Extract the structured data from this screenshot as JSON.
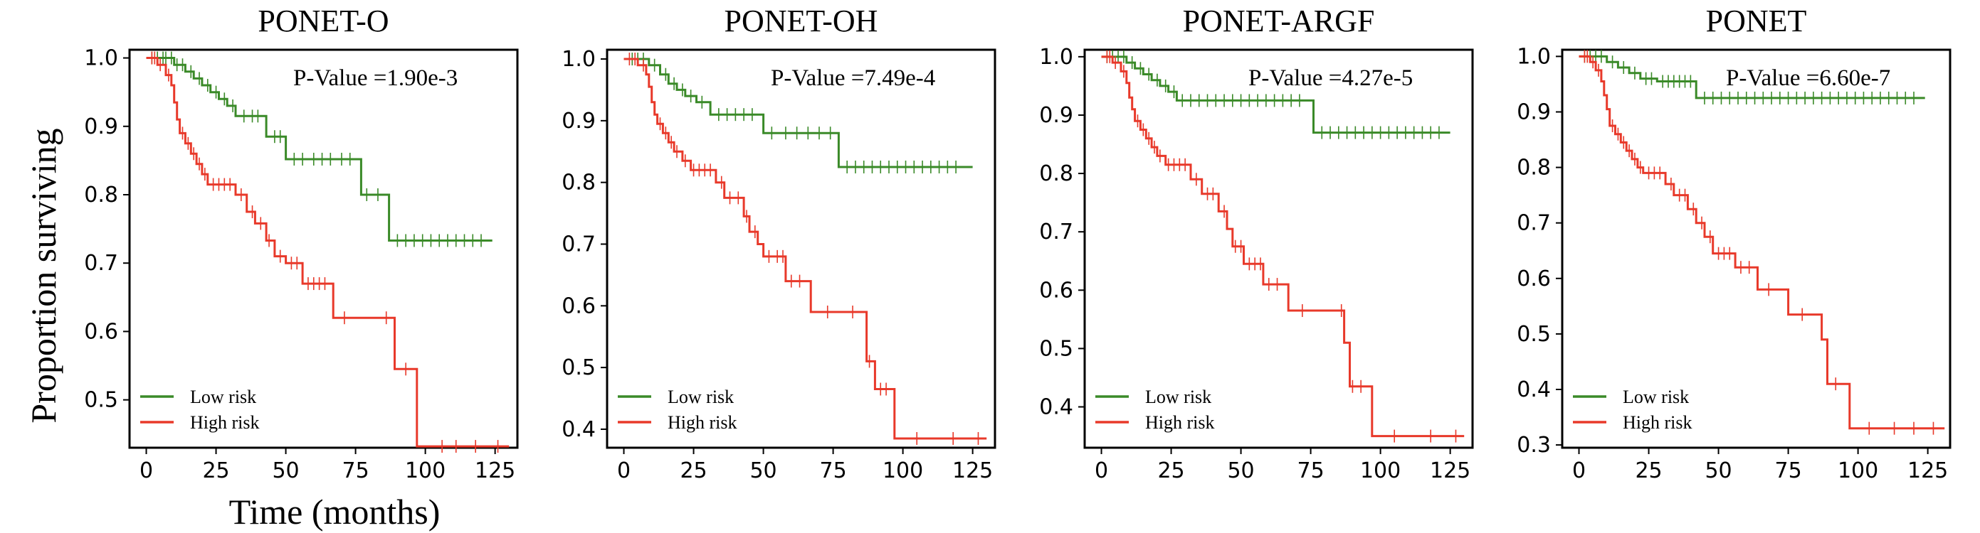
{
  "figure": {
    "ylabel": "Proportion surviving",
    "xlabel": "Time (months)"
  },
  "colors": {
    "low": "#3a8a28",
    "high": "#e8392a"
  },
  "chart_data": [
    {
      "type": "line",
      "title": "PONET-O",
      "annotation": "P-Value =1.90e-3",
      "xticks": [
        0,
        25,
        50,
        75,
        100,
        125
      ],
      "yticks": [
        0.5,
        0.6,
        0.7,
        0.8,
        0.9,
        1.0
      ],
      "ytick_labels": [
        "0.5",
        "0.6",
        "0.7",
        "0.8",
        "0.9",
        "1.0"
      ],
      "xlim": [
        -6,
        133
      ],
      "ylim": [
        0.43,
        1.012
      ],
      "legend": [
        "Low risk",
        "High risk"
      ],
      "series": [
        {
          "name": "Low risk",
          "color": "#3a8a28",
          "steps": [
            [
              0,
              1.0
            ],
            [
              10,
              0.99
            ],
            [
              14,
              0.98
            ],
            [
              17,
              0.97
            ],
            [
              20,
              0.96
            ],
            [
              23,
              0.95
            ],
            [
              26,
              0.94
            ],
            [
              29,
              0.93
            ],
            [
              32,
              0.915
            ],
            [
              43,
              0.885
            ],
            [
              50,
              0.852
            ],
            [
              77,
              0.8
            ],
            [
              87,
              0.733
            ],
            [
              124,
              0.733
            ]
          ],
          "censors": [
            2,
            4,
            6,
            7,
            9,
            11,
            13,
            16,
            19,
            22,
            25,
            28,
            31,
            35,
            38,
            40,
            46,
            48,
            53,
            56,
            60,
            63,
            66,
            70,
            73,
            79,
            83,
            90,
            93,
            96,
            99,
            102,
            105,
            108,
            111,
            114,
            117,
            120
          ]
        },
        {
          "name": "High risk",
          "color": "#e8392a",
          "steps": [
            [
              0,
              1.0
            ],
            [
              4,
              0.99
            ],
            [
              7,
              0.975
            ],
            [
              9,
              0.96
            ],
            [
              10,
              0.935
            ],
            [
              11,
              0.91
            ],
            [
              12,
              0.89
            ],
            [
              14,
              0.875
            ],
            [
              16,
              0.86
            ],
            [
              18,
              0.845
            ],
            [
              20,
              0.83
            ],
            [
              22,
              0.815
            ],
            [
              32,
              0.8
            ],
            [
              36,
              0.775
            ],
            [
              39,
              0.758
            ],
            [
              43,
              0.733
            ],
            [
              46,
              0.71
            ],
            [
              50,
              0.7
            ],
            [
              56,
              0.67
            ],
            [
              67,
              0.62
            ],
            [
              89,
              0.545
            ],
            [
              97,
              0.432
            ],
            [
              130,
              0.432
            ]
          ],
          "censors": [
            2,
            3,
            5,
            8,
            13,
            15,
            17,
            19,
            21,
            24,
            26,
            28,
            30,
            34,
            38,
            41,
            44,
            48,
            52,
            54,
            58,
            60,
            62,
            64,
            71,
            86,
            93,
            106,
            111,
            118,
            126
          ]
        }
      ]
    },
    {
      "type": "line",
      "title": "PONET-OH",
      "annotation": "P-Value =7.49e-4",
      "xticks": [
        0,
        25,
        50,
        75,
        100,
        125
      ],
      "yticks": [
        0.4,
        0.5,
        0.6,
        0.7,
        0.8,
        0.9,
        1.0
      ],
      "ytick_labels": [
        "0.4",
        "0.5",
        "0.6",
        "0.7",
        "0.8",
        "0.9",
        "1.0"
      ],
      "xlim": [
        -6,
        133
      ],
      "ylim": [
        0.37,
        1.015
      ],
      "legend": [
        "Low risk",
        "High risk"
      ],
      "series": [
        {
          "name": "Low risk",
          "color": "#3a8a28",
          "steps": [
            [
              0,
              1.0
            ],
            [
              9,
              0.99
            ],
            [
              13,
              0.975
            ],
            [
              16,
              0.96
            ],
            [
              19,
              0.95
            ],
            [
              22,
              0.94
            ],
            [
              26,
              0.93
            ],
            [
              31,
              0.91
            ],
            [
              50,
              0.88
            ],
            [
              77,
              0.825
            ],
            [
              125,
              0.825
            ]
          ],
          "censors": [
            3,
            5,
            7,
            11,
            15,
            18,
            21,
            24,
            28,
            34,
            37,
            40,
            43,
            46,
            53,
            58,
            62,
            66,
            70,
            74,
            80,
            83,
            86,
            89,
            92,
            95,
            98,
            101,
            104,
            107,
            110,
            113,
            116,
            119
          ]
        },
        {
          "name": "High risk",
          "color": "#e8392a",
          "steps": [
            [
              0,
              1.0
            ],
            [
              5,
              0.99
            ],
            [
              8,
              0.975
            ],
            [
              9,
              0.955
            ],
            [
              10,
              0.93
            ],
            [
              11,
              0.91
            ],
            [
              12,
              0.895
            ],
            [
              14,
              0.88
            ],
            [
              16,
              0.865
            ],
            [
              18,
              0.85
            ],
            [
              21,
              0.835
            ],
            [
              24,
              0.82
            ],
            [
              33,
              0.8
            ],
            [
              36,
              0.775
            ],
            [
              43,
              0.745
            ],
            [
              45,
              0.72
            ],
            [
              48,
              0.7
            ],
            [
              50,
              0.68
            ],
            [
              58,
              0.64
            ],
            [
              67,
              0.59
            ],
            [
              87,
              0.51
            ],
            [
              90,
              0.465
            ],
            [
              97,
              0.385
            ],
            [
              130,
              0.385
            ]
          ],
          "censors": [
            2,
            4,
            7,
            13,
            15,
            17,
            19,
            22,
            25,
            27,
            29,
            31,
            35,
            38,
            41,
            44,
            47,
            52,
            55,
            57,
            60,
            63,
            73,
            82,
            88,
            92,
            94,
            105,
            118,
            127
          ]
        }
      ]
    },
    {
      "type": "line",
      "title": "PONET-ARGF",
      "annotation": "P-Value =4.27e-5",
      "xticks": [
        0,
        25,
        50,
        75,
        100,
        125
      ],
      "yticks": [
        0.4,
        0.5,
        0.6,
        0.7,
        0.8,
        0.9,
        1.0
      ],
      "ytick_labels": [
        "0.4",
        "0.5",
        "0.6",
        "0.7",
        "0.8",
        "0.9",
        "1.0"
      ],
      "xlim": [
        -6,
        133
      ],
      "ylim": [
        0.33,
        1.012
      ],
      "legend": [
        "Low risk",
        "High risk"
      ],
      "series": [
        {
          "name": "Low risk",
          "color": "#3a8a28",
          "steps": [
            [
              0,
              1.0
            ],
            [
              9,
              0.99
            ],
            [
              12,
              0.98
            ],
            [
              15,
              0.97
            ],
            [
              18,
              0.96
            ],
            [
              21,
              0.95
            ],
            [
              24,
              0.94
            ],
            [
              27,
              0.925
            ],
            [
              76,
              0.87
            ],
            [
              125,
              0.87
            ]
          ],
          "censors": [
            2,
            4,
            6,
            8,
            11,
            14,
            17,
            20,
            23,
            26,
            29,
            32,
            35,
            38,
            41,
            44,
            47,
            50,
            53,
            56,
            59,
            62,
            65,
            68,
            71,
            79,
            82,
            85,
            88,
            91,
            94,
            97,
            100,
            103,
            106,
            109,
            112,
            115,
            118,
            121
          ]
        },
        {
          "name": "High risk",
          "color": "#e8392a",
          "steps": [
            [
              0,
              1.0
            ],
            [
              4,
              0.99
            ],
            [
              7,
              0.975
            ],
            [
              9,
              0.955
            ],
            [
              10,
              0.93
            ],
            [
              11,
              0.91
            ],
            [
              12,
              0.89
            ],
            [
              14,
              0.875
            ],
            [
              16,
              0.86
            ],
            [
              18,
              0.845
            ],
            [
              20,
              0.83
            ],
            [
              23,
              0.815
            ],
            [
              32,
              0.79
            ],
            [
              36,
              0.765
            ],
            [
              42,
              0.735
            ],
            [
              45,
              0.705
            ],
            [
              47,
              0.675
            ],
            [
              51,
              0.645
            ],
            [
              58,
              0.61
            ],
            [
              67,
              0.565
            ],
            [
              87,
              0.51
            ],
            [
              89,
              0.435
            ],
            [
              97,
              0.35
            ],
            [
              130,
              0.35
            ]
          ],
          "censors": [
            2,
            3,
            5,
            8,
            13,
            15,
            17,
            19,
            21,
            24,
            26,
            28,
            30,
            34,
            38,
            40,
            44,
            48,
            50,
            53,
            55,
            57,
            60,
            63,
            72,
            86,
            90,
            93,
            105,
            118,
            127
          ]
        }
      ]
    },
    {
      "type": "line",
      "title": "PONET",
      "annotation": "P-Value =6.60e-7",
      "xticks": [
        0,
        25,
        50,
        75,
        100,
        125
      ],
      "yticks": [
        0.3,
        0.4,
        0.5,
        0.6,
        0.7,
        0.8,
        0.9,
        1.0
      ],
      "ytick_labels": [
        "0.3",
        "0.4",
        "0.5",
        "0.6",
        "0.7",
        "0.8",
        "0.9",
        "1.0"
      ],
      "xlim": [
        -6,
        133
      ],
      "ylim": [
        0.295,
        1.012
      ],
      "legend": [
        "Low risk",
        "High risk"
      ],
      "series": [
        {
          "name": "Low risk",
          "color": "#3a8a28",
          "steps": [
            [
              0,
              1.0
            ],
            [
              10,
              0.99
            ],
            [
              14,
              0.98
            ],
            [
              18,
              0.97
            ],
            [
              22,
              0.96
            ],
            [
              28,
              0.955
            ],
            [
              42,
              0.925
            ],
            [
              124,
              0.925
            ]
          ],
          "censors": [
            2,
            4,
            6,
            8,
            12,
            16,
            20,
            24,
            26,
            30,
            32,
            34,
            36,
            38,
            40,
            45,
            48,
            51,
            54,
            57,
            60,
            63,
            66,
            69,
            72,
            75,
            78,
            81,
            84,
            87,
            90,
            93,
            96,
            99,
            102,
            105,
            108,
            111,
            114,
            117,
            120
          ]
        },
        {
          "name": "High risk",
          "color": "#e8392a",
          "steps": [
            [
              0,
              1.0
            ],
            [
              4,
              0.99
            ],
            [
              6,
              0.975
            ],
            [
              8,
              0.955
            ],
            [
              9,
              0.93
            ],
            [
              10,
              0.905
            ],
            [
              11,
              0.875
            ],
            [
              13,
              0.86
            ],
            [
              15,
              0.845
            ],
            [
              17,
              0.83
            ],
            [
              19,
              0.815
            ],
            [
              21,
              0.8
            ],
            [
              23,
              0.79
            ],
            [
              31,
              0.77
            ],
            [
              34,
              0.75
            ],
            [
              39,
              0.725
            ],
            [
              42,
              0.7
            ],
            [
              45,
              0.675
            ],
            [
              48,
              0.645
            ],
            [
              56,
              0.62
            ],
            [
              64,
              0.58
            ],
            [
              75,
              0.535
            ],
            [
              87,
              0.49
            ],
            [
              89,
              0.41
            ],
            [
              97,
              0.33
            ],
            [
              131,
              0.33
            ]
          ],
          "censors": [
            2,
            3,
            5,
            7,
            12,
            14,
            16,
            18,
            20,
            22,
            25,
            27,
            29,
            33,
            36,
            38,
            41,
            44,
            47,
            50,
            52,
            54,
            58,
            61,
            68,
            80,
            92,
            104,
            113,
            120,
            127
          ]
        }
      ]
    }
  ]
}
